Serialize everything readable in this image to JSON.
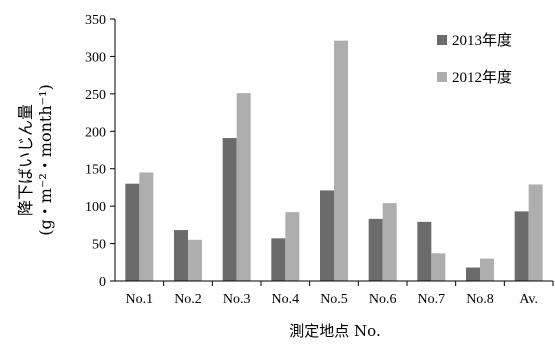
{
  "chart_data": {
    "type": "bar",
    "categories": [
      "No.1",
      "No.2",
      "No.3",
      "No.4",
      "No.5",
      "No.6",
      "No.7",
      "No.8",
      "Av."
    ],
    "series": [
      {
        "name": "2013年度",
        "color": "#6b6b6b",
        "values": [
          130,
          68,
          191,
          57,
          121,
          83,
          79,
          18,
          93
        ]
      },
      {
        "name": "2012年度",
        "color": "#aeaeae",
        "values": [
          145,
          55,
          251,
          92,
          321,
          104,
          37,
          30,
          129
        ]
      }
    ],
    "ylim": [
      0,
      350
    ],
    "yticks": [
      0,
      50,
      100,
      150,
      200,
      250,
      300,
      350
    ],
    "ylabel_line1": "降下ばいじん量",
    "ylabel_line2": "(g・m⁻²・month⁻¹)",
    "xlabel": "測定地点  No.",
    "legend_position": "top-right",
    "grid": false
  }
}
